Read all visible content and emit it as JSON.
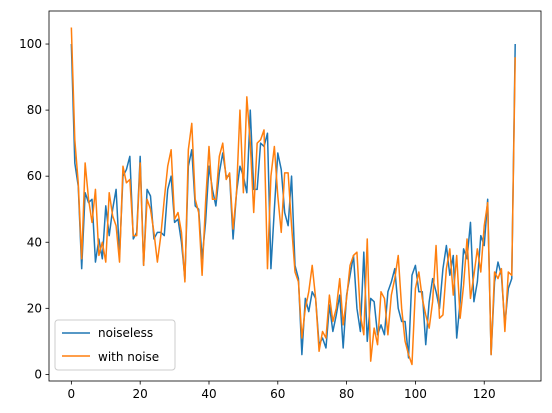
{
  "chart_data": {
    "type": "line",
    "title": "",
    "xlabel": "",
    "ylabel": "",
    "xlim": [
      -6.5,
      136.5
    ],
    "ylim": [
      -2,
      110
    ],
    "xticks": [
      0,
      20,
      40,
      60,
      80,
      100,
      120
    ],
    "yticks": [
      0,
      20,
      40,
      60,
      80,
      100
    ],
    "grid": false,
    "legend_position": "lower-left",
    "series": [
      {
        "name": "noiseless",
        "color": "#1f77b4",
        "x": [
          0,
          1,
          2,
          3,
          4,
          5,
          6,
          7,
          8,
          9,
          10,
          11,
          12,
          13,
          14,
          15,
          16,
          17,
          18,
          19,
          20,
          21,
          22,
          23,
          24,
          25,
          26,
          27,
          28,
          29,
          30,
          31,
          32,
          33,
          34,
          35,
          36,
          37,
          38,
          39,
          40,
          41,
          42,
          43,
          44,
          45,
          46,
          47,
          48,
          49,
          50,
          51,
          52,
          53,
          54,
          55,
          56,
          57,
          58,
          59,
          60,
          61,
          62,
          63,
          64,
          65,
          66,
          67,
          68,
          69,
          70,
          71,
          72,
          73,
          74,
          75,
          76,
          77,
          78,
          79,
          80,
          81,
          82,
          83,
          84,
          85,
          86,
          87,
          88,
          89,
          90,
          91,
          92,
          93,
          94,
          95,
          96,
          97,
          98,
          99,
          100,
          101,
          102,
          103,
          104,
          105,
          106,
          107,
          108,
          109,
          110,
          111,
          112,
          113,
          114,
          115,
          116,
          117,
          118,
          119,
          120,
          121,
          122,
          123,
          124,
          125,
          126,
          127,
          128,
          129
        ],
        "values": [
          100,
          64,
          57,
          32,
          55,
          52,
          53,
          34,
          41,
          35,
          51,
          42,
          50,
          56,
          36,
          60,
          62,
          66,
          41,
          43,
          66,
          33,
          56,
          54,
          41,
          43,
          43,
          42,
          56,
          60,
          46,
          47,
          40,
          29,
          63,
          68,
          51,
          50,
          35,
          46,
          63,
          56,
          51,
          61,
          67,
          60,
          60,
          41,
          55,
          63,
          60,
          55,
          80,
          56,
          56,
          70,
          69,
          73,
          32,
          50,
          67,
          62,
          49,
          45,
          60,
          33,
          29,
          6,
          23,
          19,
          25,
          23,
          9,
          11,
          8,
          21,
          13,
          18,
          24,
          8,
          24,
          30,
          36,
          20,
          13,
          37,
          10,
          23,
          22,
          12,
          15,
          12,
          25,
          28,
          32,
          20,
          16,
          16,
          5,
          30,
          33,
          25,
          25,
          9,
          22,
          29,
          25,
          20,
          32,
          39,
          30,
          36,
          11,
          22,
          38,
          35,
          46,
          22,
          28,
          42,
          39,
          53,
          6,
          28,
          34,
          30,
          15,
          26,
          29,
          100
        ]
      },
      {
        "name": "with noise",
        "color": "#ff7f0e",
        "x": [
          0,
          1,
          2,
          3,
          4,
          5,
          6,
          7,
          8,
          9,
          10,
          11,
          12,
          13,
          14,
          15,
          16,
          17,
          18,
          19,
          20,
          21,
          22,
          23,
          24,
          25,
          26,
          27,
          28,
          29,
          30,
          31,
          32,
          33,
          34,
          35,
          36,
          37,
          38,
          39,
          40,
          41,
          42,
          43,
          44,
          45,
          46,
          47,
          48,
          49,
          50,
          51,
          52,
          53,
          54,
          55,
          56,
          57,
          58,
          59,
          60,
          61,
          62,
          63,
          64,
          65,
          66,
          67,
          68,
          69,
          70,
          71,
          72,
          73,
          74,
          75,
          76,
          77,
          78,
          79,
          80,
          81,
          82,
          83,
          84,
          85,
          86,
          87,
          88,
          89,
          90,
          91,
          92,
          93,
          94,
          95,
          96,
          97,
          98,
          99,
          100,
          101,
          102,
          103,
          104,
          105,
          106,
          107,
          108,
          109,
          110,
          111,
          112,
          113,
          114,
          115,
          116,
          117,
          118,
          119,
          120,
          121,
          122,
          123,
          124,
          125,
          126,
          127,
          128,
          129
        ],
        "values": [
          105,
          71,
          58,
          35,
          64,
          53,
          46,
          56,
          36,
          40,
          34,
          55,
          48,
          45,
          34,
          63,
          58,
          59,
          42,
          42,
          64,
          33,
          53,
          50,
          43,
          34,
          42,
          53,
          63,
          68,
          47,
          49,
          43,
          28,
          68,
          76,
          53,
          49,
          30,
          52,
          69,
          53,
          53,
          66,
          70,
          59,
          61,
          44,
          55,
          80,
          55,
          84,
          70,
          49,
          70,
          71,
          74,
          32,
          60,
          69,
          54,
          43,
          61,
          61,
          45,
          31,
          28,
          11,
          20,
          25,
          33,
          23,
          7,
          13,
          11,
          24,
          16,
          20,
          29,
          15,
          23,
          33,
          36,
          37,
          18,
          12,
          41,
          4,
          14,
          9,
          25,
          23,
          12,
          24,
          29,
          36,
          20,
          10,
          6,
          3,
          26,
          31,
          23,
          18,
          14,
          22,
          39,
          17,
          18,
          32,
          38,
          24,
          36,
          17,
          27,
          41,
          23,
          30,
          38,
          31,
          45,
          52,
          6,
          31,
          29,
          32,
          13,
          31,
          30,
          96
        ]
      }
    ]
  }
}
